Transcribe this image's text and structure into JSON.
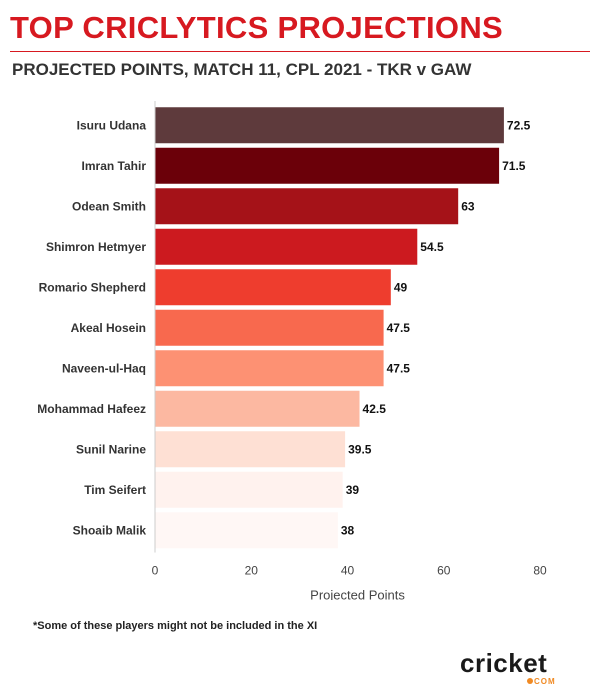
{
  "header": {
    "title": "TOP CRICLYTICS PROJECTIONS",
    "subtitle": "PROJECTED POINTS, MATCH 11, CPL 2021 - TKR v GAW"
  },
  "chart_data": {
    "type": "bar",
    "orientation": "horizontal",
    "categories": [
      "Isuru Udana",
      "Imran Tahir",
      "Odean Smith",
      "Shimron Hetmyer",
      "Romario Shepherd",
      "Akeal Hosein",
      "Naveen-ul-Haq",
      "Mohammad Hafeez",
      "Sunil Narine",
      "Tim Seifert",
      "Shoaib Malik"
    ],
    "values": [
      72.5,
      71.5,
      63,
      54.5,
      49,
      47.5,
      47.5,
      42.5,
      39.5,
      39,
      38
    ],
    "value_labels": [
      "72.5",
      "71.5",
      "63",
      "54.5",
      "49",
      "47.5",
      "47.5",
      "42.5",
      "39.5",
      "39",
      "38"
    ],
    "colors": [
      "#5e3a3c",
      "#6b0009",
      "#a51218",
      "#cc1a1f",
      "#ee3d2e",
      "#f8694e",
      "#fd9173",
      "#fcb8a1",
      "#fee0d4",
      "#fff2ee",
      "#fff7f5"
    ],
    "xlabel": "Projected Points",
    "ylabel": "",
    "xlim": [
      0,
      80
    ],
    "xticks": [
      0,
      20,
      40,
      60,
      80
    ],
    "xtick_labels": [
      "0",
      "20",
      "40",
      "60",
      "80"
    ],
    "grid": false,
    "legend": "none"
  },
  "footnote": "*Some of these players might not be included in the XI",
  "logo": {
    "word": "cricket",
    "suffix": "COM"
  }
}
